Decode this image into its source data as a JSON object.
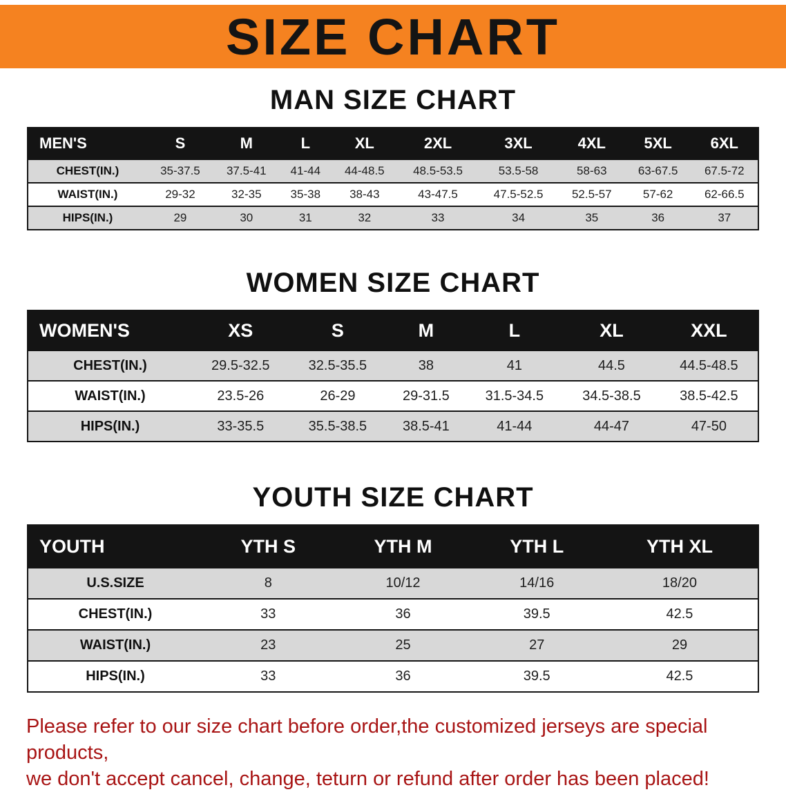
{
  "banner": {
    "title": "SIZE CHART",
    "bg_color": "#f58220",
    "text_color": "#141414"
  },
  "men": {
    "heading": "MAN SIZE CHART",
    "header": [
      "MEN'S",
      "S",
      "M",
      "L",
      "XL",
      "2XL",
      "3XL",
      "4XL",
      "5XL",
      "6XL"
    ],
    "rows": [
      {
        "label": "CHEST(IN.)",
        "values": [
          "35-37.5",
          "37.5-41",
          "41-44",
          "44-48.5",
          "48.5-53.5",
          "53.5-58",
          "58-63",
          "63-67.5",
          "67.5-72"
        ]
      },
      {
        "label": "WAIST(IN.)",
        "values": [
          "29-32",
          "32-35",
          "35-38",
          "38-43",
          "43-47.5",
          "47.5-52.5",
          "52.5-57",
          "57-62",
          "62-66.5"
        ]
      },
      {
        "label": "HIPS(IN.)",
        "values": [
          "29",
          "30",
          "31",
          "32",
          "33",
          "34",
          "35",
          "36",
          "37"
        ]
      }
    ]
  },
  "women": {
    "heading": "WOMEN SIZE CHART",
    "header": [
      "WOMEN'S",
      "XS",
      "S",
      "M",
      "L",
      "XL",
      "XXL"
    ],
    "rows": [
      {
        "label": "CHEST(IN.)",
        "values": [
          "29.5-32.5",
          "32.5-35.5",
          "38",
          "41",
          "44.5",
          "44.5-48.5"
        ]
      },
      {
        "label": "WAIST(IN.)",
        "values": [
          "23.5-26",
          "26-29",
          "29-31.5",
          "31.5-34.5",
          "34.5-38.5",
          "38.5-42.5"
        ]
      },
      {
        "label": "HIPS(IN.)",
        "values": [
          "33-35.5",
          "35.5-38.5",
          "38.5-41",
          "41-44",
          "44-47",
          "47-50"
        ]
      }
    ]
  },
  "youth": {
    "heading": "YOUTH SIZE CHART",
    "header": [
      "YOUTH",
      "YTH S",
      "YTH M",
      "YTH L",
      "YTH XL"
    ],
    "rows": [
      {
        "label": "U.S.SIZE",
        "values": [
          "8",
          "10/12",
          "14/16",
          "18/20"
        ]
      },
      {
        "label": "CHEST(IN.)",
        "values": [
          "33",
          "36",
          "39.5",
          "42.5"
        ]
      },
      {
        "label": "WAIST(IN.)",
        "values": [
          "23",
          "25",
          "27",
          "29"
        ]
      },
      {
        "label": "HIPS(IN.)",
        "values": [
          "33",
          "36",
          "39.5",
          "42.5"
        ]
      }
    ]
  },
  "disclaimer": {
    "line1": "Please refer to our size chart before order,the customized jerseys are special products,",
    "line2": "we don't accept cancel, change, teturn or refund after order has been placed!",
    "color": "#a81414"
  }
}
